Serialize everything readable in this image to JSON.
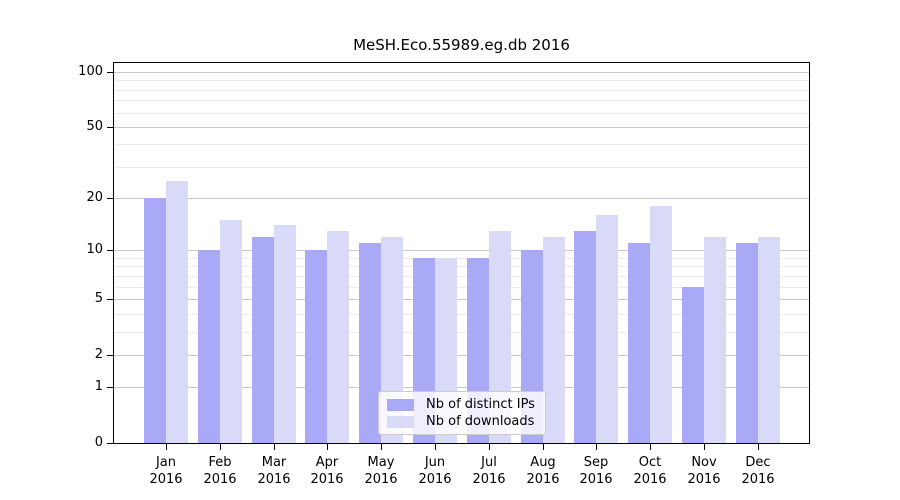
{
  "chart_data": {
    "type": "bar",
    "title": "MeSH.Eco.55989.eg.db 2016",
    "categories": [
      "Jan",
      "Feb",
      "Mar",
      "Apr",
      "May",
      "Jun",
      "Jul",
      "Aug",
      "Sep",
      "Oct",
      "Nov",
      "Dec"
    ],
    "category_year": "2016",
    "series": [
      {
        "name": "Nb of distinct IPs",
        "color": "#a9a9f8",
        "values": [
          20,
          10,
          12,
          10,
          11,
          9,
          9,
          10,
          13,
          11,
          6,
          11
        ]
      },
      {
        "name": "Nb of downloads",
        "color": "#d9d9f8",
        "values": [
          25,
          15,
          14,
          13,
          12,
          9,
          13,
          12,
          16,
          18,
          12,
          12
        ]
      }
    ],
    "y_axis": {
      "scale": "log1p",
      "max": 100,
      "major_ticks": [
        0,
        1,
        2,
        5,
        10,
        20,
        50,
        100
      ],
      "minor_ticks": [
        3,
        4,
        6,
        7,
        8,
        9,
        30,
        40,
        60,
        70,
        80,
        90
      ]
    },
    "ylim": [
      0,
      100
    ],
    "grid": {
      "major_color": "#c9c9c9",
      "minor_color": "#ebebeb"
    },
    "legend": {
      "position": "inside-bottom-center"
    }
  }
}
